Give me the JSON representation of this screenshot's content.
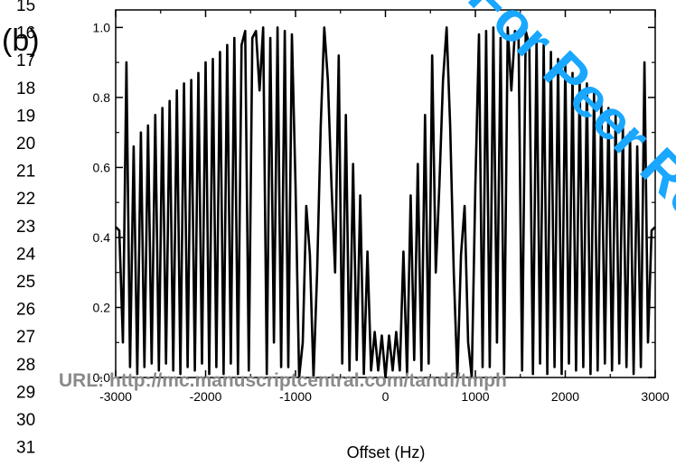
{
  "page": {
    "line_numbers": [
      "15",
      "16",
      "17",
      "18",
      "19",
      "20",
      "21",
      "22",
      "23",
      "24",
      "25",
      "26",
      "27",
      "28",
      "29",
      "30",
      "31"
    ],
    "watermark": "For Peer Review Only",
    "url_text": "URL: http://mc.manuscriptcentral.com/tandf/tmph",
    "colors": {
      "watermark": "#19a7ff",
      "url": "#8a8a8a",
      "curve": "#000000"
    }
  },
  "chart_data": {
    "type": "line",
    "panel_label": "(b)",
    "title": "",
    "xlabel": "Offset (Hz)",
    "ylabel": "",
    "xlim": [
      -3000,
      3000
    ],
    "ylim": [
      0.0,
      1.05
    ],
    "x_ticks": [
      -3000,
      -2000,
      -1000,
      0,
      1000,
      2000,
      3000
    ],
    "x_tick_labels": [
      "-3000",
      "-2000",
      "-1000",
      "0",
      "1000",
      "2000",
      "3000"
    ],
    "y_ticks": [
      0.0,
      0.2,
      0.4,
      0.6,
      0.8,
      1.0
    ],
    "y_tick_labels": [
      "0.0",
      "0.2",
      "0.4",
      "0.6",
      "0.8",
      "1.0"
    ],
    "grid": false,
    "series": [
      {
        "x": [
          0,
          40,
          80,
          120,
          160,
          200,
          240,
          280,
          320,
          360,
          400,
          440,
          480,
          520,
          560,
          600,
          640,
          680,
          720,
          760,
          800,
          840,
          880,
          920,
          960,
          1000,
          1040,
          1080,
          1120,
          1160,
          1200,
          1240,
          1280,
          1320,
          1360,
          1400,
          1440,
          1480,
          1520,
          1560,
          1600,
          1640,
          1680,
          1720,
          1760,
          1800,
          1840,
          1880,
          1920,
          1960,
          2000,
          2040,
          2080,
          2120,
          2160,
          2200,
          2240,
          2280,
          2320,
          2360,
          2400,
          2440,
          2480,
          2520,
          2560,
          2600,
          2640,
          2680,
          2720,
          2760,
          2800,
          2840,
          2880,
          2920,
          2960,
          3000
        ],
        "y": [
          0.0,
          0.12,
          0.02,
          0.13,
          0.02,
          0.36,
          0.01,
          0.52,
          0.05,
          0.61,
          0.02,
          0.75,
          0.04,
          0.92,
          0.3,
          0.55,
          0.85,
          1.0,
          0.72,
          0.3,
          0.0,
          0.35,
          0.49,
          0.1,
          0.0,
          0.55,
          0.98,
          0.03,
          0.99,
          0.03,
          1.0,
          0.1,
          0.97,
          0.01,
          1.0,
          0.82,
          0.99,
          0.97,
          0.02,
          0.99,
          0.95,
          0.01,
          0.97,
          0.04,
          0.95,
          0.01,
          0.93,
          0.03,
          0.91,
          0.01,
          0.9,
          0.04,
          0.87,
          0.02,
          0.85,
          0.03,
          0.84,
          0.01,
          0.82,
          0.02,
          0.79,
          0.04,
          0.77,
          0.02,
          0.75,
          0.04,
          0.72,
          0.03,
          0.7,
          0.01,
          0.66,
          0.03,
          0.9,
          0.1,
          0.42,
          0.43
        ]
      }
    ]
  }
}
